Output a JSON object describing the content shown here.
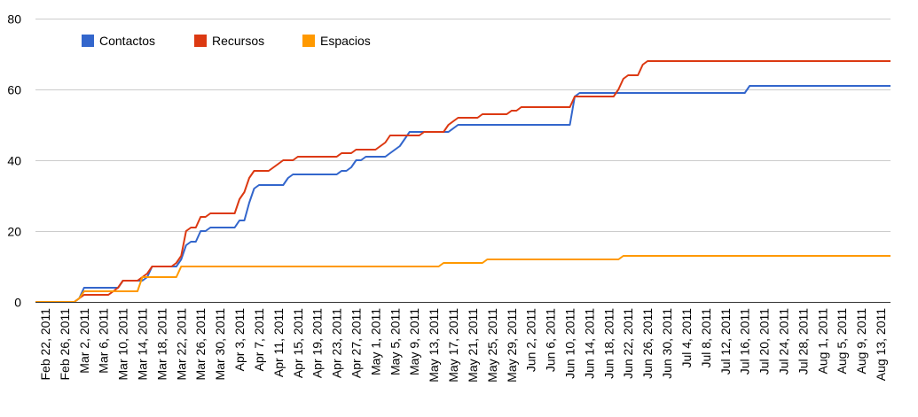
{
  "chart_data": {
    "type": "line",
    "title": "",
    "xlabel": "",
    "ylabel": "",
    "ylim": [
      0,
      80
    ],
    "y_ticks": [
      0,
      20,
      40,
      60,
      80
    ],
    "x_range": [
      "2011-02-20",
      "2011-08-15"
    ],
    "grid": true,
    "legend_position": "top-left",
    "x_tick_labels": [
      {
        "date": "2011-02-22",
        "label": "Feb 22, 2011"
      },
      {
        "date": "2011-02-26",
        "label": "Feb 26, 2011"
      },
      {
        "date": "2011-03-02",
        "label": "Mar 2, 2011"
      },
      {
        "date": "2011-03-06",
        "label": "Mar 6, 2011"
      },
      {
        "date": "2011-03-10",
        "label": "Mar 10, 2011"
      },
      {
        "date": "2011-03-14",
        "label": "Mar 14, 2011"
      },
      {
        "date": "2011-03-18",
        "label": "Mar 18, 2011"
      },
      {
        "date": "2011-03-22",
        "label": "Mar 22, 2011"
      },
      {
        "date": "2011-03-26",
        "label": "Mar 26, 2011"
      },
      {
        "date": "2011-03-30",
        "label": "Mar 30, 2011"
      },
      {
        "date": "2011-04-03",
        "label": "Apr 3, 2011"
      },
      {
        "date": "2011-04-07",
        "label": "Apr 7, 2011"
      },
      {
        "date": "2011-04-11",
        "label": "Apr 11, 2011"
      },
      {
        "date": "2011-04-15",
        "label": "Apr 15, 2011"
      },
      {
        "date": "2011-04-19",
        "label": "Apr 19, 2011"
      },
      {
        "date": "2011-04-23",
        "label": "Apr 23, 2011"
      },
      {
        "date": "2011-04-27",
        "label": "Apr 27, 2011"
      },
      {
        "date": "2011-05-01",
        "label": "May 1, 2011"
      },
      {
        "date": "2011-05-05",
        "label": "May 5, 2011"
      },
      {
        "date": "2011-05-09",
        "label": "May 9, 2011"
      },
      {
        "date": "2011-05-13",
        "label": "May 13, 2011"
      },
      {
        "date": "2011-05-17",
        "label": "May 17, 2011"
      },
      {
        "date": "2011-05-21",
        "label": "May 21, 2011"
      },
      {
        "date": "2011-05-25",
        "label": "May 25, 2011"
      },
      {
        "date": "2011-05-29",
        "label": "May 29, 2011"
      },
      {
        "date": "2011-06-02",
        "label": "Jun 2, 2011"
      },
      {
        "date": "2011-06-06",
        "label": "Jun 6, 2011"
      },
      {
        "date": "2011-06-10",
        "label": "Jun 10, 2011"
      },
      {
        "date": "2011-06-14",
        "label": "Jun 14, 2011"
      },
      {
        "date": "2011-06-18",
        "label": "Jun 18, 2011"
      },
      {
        "date": "2011-06-22",
        "label": "Jun 22, 2011"
      },
      {
        "date": "2011-06-26",
        "label": "Jun 26, 2011"
      },
      {
        "date": "2011-06-30",
        "label": "Jun 30, 2011"
      },
      {
        "date": "2011-07-04",
        "label": "Jul 4, 2011"
      },
      {
        "date": "2011-07-08",
        "label": "Jul 8, 2011"
      },
      {
        "date": "2011-07-12",
        "label": "Jul 12, 2011"
      },
      {
        "date": "2011-07-16",
        "label": "Jul 16, 2011"
      },
      {
        "date": "2011-07-20",
        "label": "Jul 20, 2011"
      },
      {
        "date": "2011-07-24",
        "label": "Jul 24, 2011"
      },
      {
        "date": "2011-07-28",
        "label": "Jul 28, 2011"
      },
      {
        "date": "2011-08-01",
        "label": "Aug 1, 2011"
      },
      {
        "date": "2011-08-05",
        "label": "Aug 5, 2011"
      },
      {
        "date": "2011-08-09",
        "label": "Aug 9, 2011"
      },
      {
        "date": "2011-08-13",
        "label": "Aug 13, 2011"
      }
    ],
    "series": [
      {
        "name": "Contactos",
        "color": "#3366cc",
        "points": [
          [
            "2011-02-20",
            0
          ],
          [
            "2011-02-28",
            0
          ],
          [
            "2011-03-01",
            1
          ],
          [
            "2011-03-02",
            4
          ],
          [
            "2011-03-09",
            4
          ],
          [
            "2011-03-10",
            6
          ],
          [
            "2011-03-14",
            6
          ],
          [
            "2011-03-15",
            7
          ],
          [
            "2011-03-16",
            10
          ],
          [
            "2011-03-21",
            10
          ],
          [
            "2011-03-22",
            12
          ],
          [
            "2011-03-23",
            16
          ],
          [
            "2011-03-24",
            17
          ],
          [
            "2011-03-25",
            17
          ],
          [
            "2011-03-26",
            20
          ],
          [
            "2011-03-27",
            20
          ],
          [
            "2011-03-28",
            21
          ],
          [
            "2011-04-02",
            21
          ],
          [
            "2011-04-03",
            23
          ],
          [
            "2011-04-04",
            23
          ],
          [
            "2011-04-05",
            28
          ],
          [
            "2011-04-06",
            32
          ],
          [
            "2011-04-07",
            33
          ],
          [
            "2011-04-12",
            33
          ],
          [
            "2011-04-13",
            35
          ],
          [
            "2011-04-14",
            36
          ],
          [
            "2011-04-23",
            36
          ],
          [
            "2011-04-24",
            37
          ],
          [
            "2011-04-25",
            37
          ],
          [
            "2011-04-26",
            38
          ],
          [
            "2011-04-27",
            40
          ],
          [
            "2011-04-28",
            40
          ],
          [
            "2011-04-29",
            41
          ],
          [
            "2011-05-03",
            41
          ],
          [
            "2011-05-04",
            42
          ],
          [
            "2011-05-06",
            44
          ],
          [
            "2011-05-08",
            48
          ],
          [
            "2011-05-16",
            48
          ],
          [
            "2011-05-18",
            50
          ],
          [
            "2011-06-10",
            50
          ],
          [
            "2011-06-11",
            58
          ],
          [
            "2011-06-12",
            59
          ],
          [
            "2011-07-16",
            59
          ],
          [
            "2011-07-17",
            61
          ],
          [
            "2011-08-15",
            61
          ]
        ]
      },
      {
        "name": "Recursos",
        "color": "#dc3912",
        "points": [
          [
            "2011-02-20",
            0
          ],
          [
            "2011-02-28",
            0
          ],
          [
            "2011-03-01",
            1
          ],
          [
            "2011-03-02",
            2
          ],
          [
            "2011-03-07",
            2
          ],
          [
            "2011-03-08",
            3
          ],
          [
            "2011-03-09",
            4
          ],
          [
            "2011-03-10",
            6
          ],
          [
            "2011-03-13",
            6
          ],
          [
            "2011-03-14",
            7
          ],
          [
            "2011-03-15",
            8
          ],
          [
            "2011-03-16",
            10
          ],
          [
            "2011-03-20",
            10
          ],
          [
            "2011-03-21",
            11
          ],
          [
            "2011-03-22",
            13
          ],
          [
            "2011-03-23",
            20
          ],
          [
            "2011-03-24",
            21
          ],
          [
            "2011-03-25",
            21
          ],
          [
            "2011-03-26",
            24
          ],
          [
            "2011-03-27",
            24
          ],
          [
            "2011-03-28",
            25
          ],
          [
            "2011-04-02",
            25
          ],
          [
            "2011-04-03",
            29
          ],
          [
            "2011-04-04",
            31
          ],
          [
            "2011-04-05",
            35
          ],
          [
            "2011-04-06",
            37
          ],
          [
            "2011-04-09",
            37
          ],
          [
            "2011-04-10",
            38
          ],
          [
            "2011-04-11",
            39
          ],
          [
            "2011-04-12",
            40
          ],
          [
            "2011-04-14",
            40
          ],
          [
            "2011-04-15",
            41
          ],
          [
            "2011-04-23",
            41
          ],
          [
            "2011-04-24",
            42
          ],
          [
            "2011-04-26",
            42
          ],
          [
            "2011-04-27",
            43
          ],
          [
            "2011-05-01",
            43
          ],
          [
            "2011-05-02",
            44
          ],
          [
            "2011-05-03",
            45
          ],
          [
            "2011-05-04",
            47
          ],
          [
            "2011-05-10",
            47
          ],
          [
            "2011-05-11",
            48
          ],
          [
            "2011-05-15",
            48
          ],
          [
            "2011-05-16",
            50
          ],
          [
            "2011-05-17",
            51
          ],
          [
            "2011-05-18",
            52
          ],
          [
            "2011-05-22",
            52
          ],
          [
            "2011-05-23",
            53
          ],
          [
            "2011-05-28",
            53
          ],
          [
            "2011-05-29",
            54
          ],
          [
            "2011-05-30",
            54
          ],
          [
            "2011-05-31",
            55
          ],
          [
            "2011-06-10",
            55
          ],
          [
            "2011-06-11",
            58
          ],
          [
            "2011-06-19",
            58
          ],
          [
            "2011-06-20",
            60
          ],
          [
            "2011-06-21",
            63
          ],
          [
            "2011-06-22",
            64
          ],
          [
            "2011-06-24",
            64
          ],
          [
            "2011-06-25",
            67
          ],
          [
            "2011-06-26",
            68
          ],
          [
            "2011-08-15",
            68
          ]
        ]
      },
      {
        "name": "Espacios",
        "color": "#ff9900",
        "points": [
          [
            "2011-02-20",
            0
          ],
          [
            "2011-02-28",
            0
          ],
          [
            "2011-03-01",
            1
          ],
          [
            "2011-03-02",
            3
          ],
          [
            "2011-03-13",
            3
          ],
          [
            "2011-03-14",
            7
          ],
          [
            "2011-03-21",
            7
          ],
          [
            "2011-03-22",
            10
          ],
          [
            "2011-05-14",
            10
          ],
          [
            "2011-05-15",
            11
          ],
          [
            "2011-05-23",
            11
          ],
          [
            "2011-05-24",
            12
          ],
          [
            "2011-06-20",
            12
          ],
          [
            "2011-06-21",
            13
          ],
          [
            "2011-08-15",
            13
          ]
        ]
      }
    ]
  }
}
